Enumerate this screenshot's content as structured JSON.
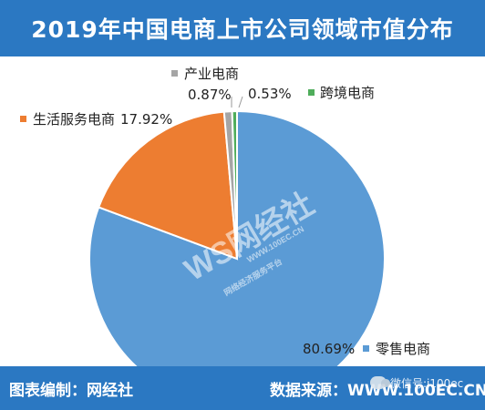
{
  "header": {
    "title": "2019年中国电商上市公司领域市值分布"
  },
  "footer": {
    "left_text": "图表编制：网经社",
    "right_text": "数据来源：WWW.100EC.CN",
    "wechat_text": "微信号:i100ec"
  },
  "watermark": {
    "logo": "WS网经社",
    "url": "WWW.100EC.CN",
    "tagline": "网络经济服务平台"
  },
  "colors": {
    "header_bg": "#2b78c2",
    "retail": "#5b9bd5",
    "services": "#ed7d31",
    "industry": "#a5a5a5",
    "cross_border": "#4fad5b"
  },
  "chart_data": {
    "type": "pie",
    "title": "2019年中国电商上市公司领域市值分布",
    "slices": [
      {
        "name": "零售电商",
        "value": 80.69,
        "label": "80.69%",
        "color": "#5b9bd5"
      },
      {
        "name": "生活服务电商",
        "value": 17.92,
        "label": "17.92%",
        "color": "#ed7d31"
      },
      {
        "name": "产业电商",
        "value": 0.87,
        "label": "0.87%",
        "color": "#a5a5a5"
      },
      {
        "name": "跨境电商",
        "value": 0.53,
        "label": "0.53%",
        "color": "#4fad5b"
      }
    ]
  }
}
